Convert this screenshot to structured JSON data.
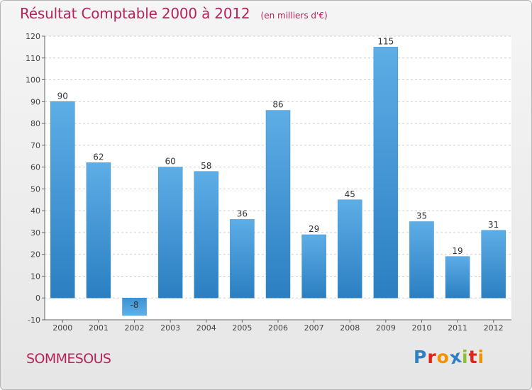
{
  "chart_data": {
    "type": "bar",
    "title": "Résultat Comptable 2000 à 2012",
    "subtitle": "(en milliers d'€)",
    "categories": [
      "2000",
      "2001",
      "2002",
      "2003",
      "2004",
      "2005",
      "2006",
      "2007",
      "2008",
      "2009",
      "2010",
      "2011",
      "2012"
    ],
    "values": [
      90,
      62,
      -8,
      60,
      58,
      36,
      86,
      29,
      45,
      115,
      35,
      19,
      31
    ],
    "ylim": [
      -10,
      120
    ],
    "yticks": [
      -10,
      0,
      10,
      20,
      30,
      40,
      50,
      60,
      70,
      80,
      90,
      100,
      110,
      120
    ],
    "xlabel": "",
    "ylabel": "",
    "grid": true,
    "colors": {
      "bar_light": "#5dade6",
      "bar_dark": "#2b7fc1",
      "neg_light": "#3d92d3",
      "neg_dark": "#5fb0e8"
    }
  },
  "footer": {
    "commune": "SOMMESOUS",
    "brand_letters": [
      {
        "ch": "P",
        "color": "#2f7fc4"
      },
      {
        "ch": "r",
        "color": "#e2231a"
      },
      {
        "ch": "o",
        "color": "#f39200"
      },
      {
        "ch": "x",
        "color": "#2f7fc4"
      },
      {
        "ch": "i",
        "color": "#8dbf2f"
      },
      {
        "ch": "t",
        "color": "#e2231a"
      },
      {
        "ch": "i",
        "color": "#f39200"
      }
    ]
  }
}
